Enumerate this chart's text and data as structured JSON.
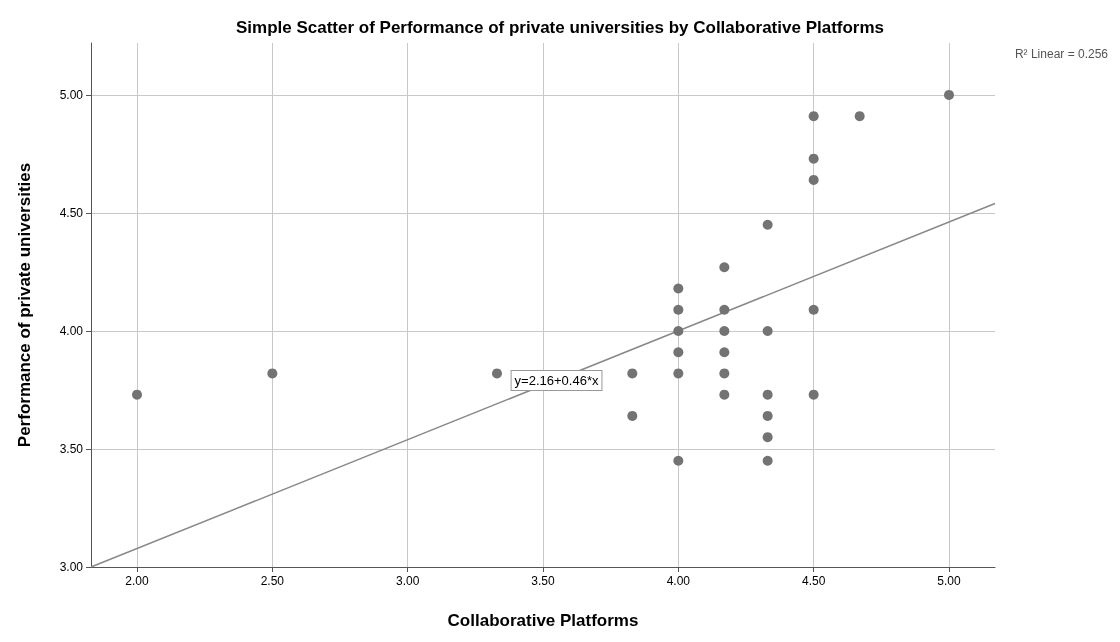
{
  "chart_data": {
    "type": "scatter",
    "title": "Simple Scatter of Performance of private universities by Collaborative Platforms",
    "xlabel": "Collaborative Platforms",
    "ylabel": "Performance of private universities",
    "xlim": [
      1.83,
      5.17
    ],
    "ylim": [
      3,
      5.22
    ],
    "xticks": [
      {
        "value": 2,
        "label": "2.00"
      },
      {
        "value": 2.5,
        "label": "2.50"
      },
      {
        "value": 3,
        "label": "3.00"
      },
      {
        "value": 3.5,
        "label": "3.50"
      },
      {
        "value": 4,
        "label": "4.00"
      },
      {
        "value": 4.5,
        "label": "4.50"
      },
      {
        "value": 5,
        "label": "5.00"
      }
    ],
    "yticks": [
      {
        "value": 3,
        "label": "3.00"
      },
      {
        "value": 3.5,
        "label": "3.50"
      },
      {
        "value": 4,
        "label": "4.00"
      },
      {
        "value": 4.5,
        "label": "4.50"
      },
      {
        "value": 5,
        "label": "5.00"
      }
    ],
    "grid": true,
    "marker": "circle",
    "series": [
      {
        "color": "#737373",
        "x": [
          2.0,
          2.5,
          3.33,
          3.83,
          3.83,
          4.0,
          4.0,
          4.0,
          4.0,
          4.0,
          4.0,
          4.17,
          4.17,
          4.17,
          4.17,
          4.17,
          4.17,
          4.33,
          4.33,
          4.33,
          4.33,
          4.33,
          4.33,
          4.5,
          4.5,
          4.5,
          4.5,
          4.5,
          4.67,
          5.0
        ],
        "values": [
          3.73,
          3.82,
          3.82,
          3.82,
          3.64,
          4.18,
          4.09,
          4.0,
          3.91,
          3.82,
          3.45,
          4.27,
          4.09,
          4.0,
          3.91,
          3.82,
          3.73,
          4.45,
          4.0,
          3.73,
          3.64,
          3.55,
          3.45,
          4.91,
          4.73,
          4.64,
          4.09,
          3.73,
          4.91,
          5.0
        ]
      },
      {
        "type": "line",
        "color": "#888888",
        "marker": "none",
        "line_style": "solid",
        "x": [
          1.83,
          5.17
        ],
        "values": [
          3.0,
          4.54
        ]
      }
    ],
    "annotations": [
      {
        "text": "y=2.16+0.46*x",
        "x": 3.55,
        "y": 3.79
      },
      "R² Linear = 0.256"
    ]
  }
}
